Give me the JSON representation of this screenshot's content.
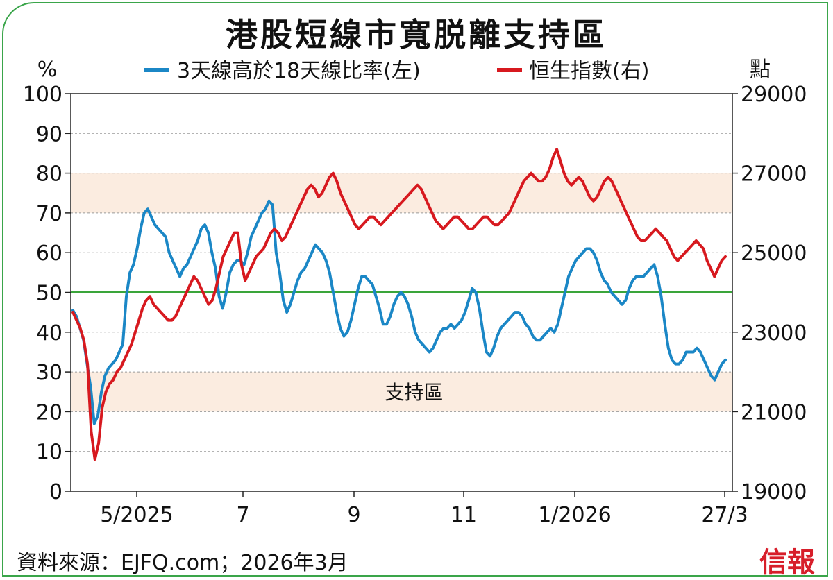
{
  "title": "港股短線市寬脱離支持區",
  "source": "資料來源：EJFQ.com；2026年3月",
  "logo": "信報",
  "chart_data": {
    "type": "line",
    "left_unit": "%",
    "right_unit": "點",
    "left_ticks": [
      "100",
      "90",
      "80",
      "70",
      "60",
      "50",
      "40",
      "30",
      "20",
      "10",
      "0"
    ],
    "right_ticks": [
      "29000",
      "27000",
      "25000",
      "23000",
      "21000",
      "19000"
    ],
    "x_ticks": [
      "5/2025",
      "7",
      "9",
      "11",
      "1/2026",
      "27/3"
    ],
    "ylim_left": [
      0,
      100
    ],
    "ylim_right": [
      19000,
      29000
    ],
    "bands": [
      [
        70,
        80
      ],
      [
        20,
        30
      ]
    ],
    "band_label": "支持區",
    "reference_line": 50,
    "colors": {
      "breadth": "#1b87c6",
      "index": "#d7191f",
      "ref": "#3aa53a",
      "band": "#fbece0",
      "grid": "#9a9a9a"
    },
    "series": [
      {
        "name": "3天線高於18天線比率(左)",
        "axis": "left",
        "color": "#1b87c6",
        "values": [
          45.5,
          44,
          41,
          38,
          32,
          26,
          17,
          19,
          25,
          29,
          31,
          32,
          33,
          35,
          37,
          49,
          55,
          57,
          61,
          66,
          70,
          71,
          69,
          67,
          66,
          65,
          64,
          60,
          58,
          56,
          54,
          56,
          57,
          59,
          61,
          63,
          66,
          67,
          65,
          60,
          56,
          49,
          46,
          50,
          55,
          57,
          58,
          58,
          57,
          60,
          64,
          66,
          68,
          70,
          71,
          73,
          72,
          60,
          55,
          48,
          45,
          47,
          50,
          53,
          55,
          56,
          58,
          60,
          62,
          61,
          60,
          58,
          55,
          50,
          45,
          41,
          39,
          40,
          43,
          47,
          51,
          54,
          54,
          53,
          52,
          49,
          46,
          42,
          42,
          44,
          47,
          49,
          50,
          49,
          47,
          44,
          40,
          38,
          37,
          36,
          35,
          36,
          38,
          40,
          41,
          41,
          42,
          41,
          42,
          43,
          45,
          48,
          51,
          50,
          46,
          40,
          35,
          34,
          36,
          39,
          41,
          42,
          43,
          44,
          45,
          45,
          44,
          42,
          41,
          39,
          38,
          38,
          39,
          40,
          41,
          40,
          42,
          46,
          50,
          54,
          56,
          58,
          59,
          60,
          61,
          61,
          60,
          58,
          55,
          53,
          52,
          50,
          49,
          48,
          47,
          48,
          51,
          53,
          54,
          54,
          54,
          55,
          56,
          57,
          54,
          49,
          42,
          36,
          33,
          32,
          32,
          33,
          35,
          35,
          35,
          36,
          35,
          33,
          31,
          29,
          28,
          30,
          32,
          33
        ]
      },
      {
        "name": "恒生指數(右)",
        "axis": "right",
        "color": "#d7191f",
        "values": [
          23500,
          23300,
          23100,
          22800,
          22200,
          20500,
          19800,
          20200,
          21100,
          21500,
          21700,
          21800,
          22000,
          22100,
          22300,
          22500,
          22700,
          23000,
          23300,
          23600,
          23800,
          23900,
          23700,
          23600,
          23500,
          23400,
          23300,
          23300,
          23400,
          23600,
          23800,
          24000,
          24200,
          24400,
          24300,
          24100,
          23900,
          23700,
          23800,
          24100,
          24500,
          24900,
          25100,
          25300,
          25500,
          25500,
          24700,
          24300,
          24500,
          24700,
          24900,
          25000,
          25100,
          25300,
          25500,
          25600,
          25500,
          25300,
          25400,
          25600,
          25800,
          26000,
          26200,
          26400,
          26600,
          26700,
          26600,
          26400,
          26500,
          26700,
          26900,
          27000,
          26800,
          26500,
          26300,
          26100,
          25900,
          25700,
          25600,
          25700,
          25800,
          25900,
          25900,
          25800,
          25700,
          25800,
          25900,
          26000,
          26100,
          26200,
          26300,
          26400,
          26500,
          26600,
          26700,
          26600,
          26400,
          26200,
          26000,
          25800,
          25700,
          25600,
          25700,
          25800,
          25900,
          25900,
          25800,
          25700,
          25600,
          25600,
          25700,
          25800,
          25900,
          25900,
          25800,
          25700,
          25700,
          25800,
          25900,
          26000,
          26200,
          26400,
          26600,
          26800,
          26900,
          27000,
          26900,
          26800,
          26800,
          26900,
          27100,
          27400,
          27600,
          27300,
          27000,
          26800,
          26700,
          26800,
          26900,
          26800,
          26600,
          26400,
          26300,
          26400,
          26600,
          26800,
          26900,
          26800,
          26600,
          26400,
          26200,
          26000,
          25800,
          25600,
          25400,
          25300,
          25300,
          25400,
          25500,
          25600,
          25500,
          25400,
          25300,
          25100,
          24900,
          24800,
          24900,
          25000,
          25100,
          25200,
          25300,
          25200,
          25100,
          24800,
          24600,
          24400,
          24600,
          24800,
          24900
        ]
      }
    ]
  }
}
